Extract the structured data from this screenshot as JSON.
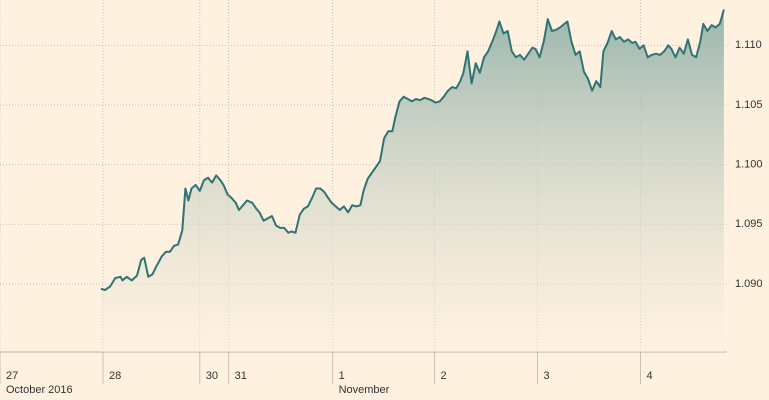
{
  "chart_data": {
    "type": "area",
    "color": "#2f7474",
    "grid": true,
    "x": [
      0.98,
      1.02,
      1.07,
      1.12,
      1.17,
      1.19,
      1.23,
      1.28,
      1.33,
      1.37,
      1.4,
      1.44,
      1.48,
      1.52,
      1.57,
      1.61,
      1.65,
      1.69,
      1.73,
      1.77,
      1.8,
      1.83,
      1.86,
      1.9,
      1.94,
      1.98,
      2.02,
      2.06,
      2.1,
      2.14,
      2.17,
      2.21,
      2.25,
      2.29,
      2.32,
      2.36,
      2.4,
      2.45,
      2.49,
      2.52,
      2.56,
      2.6,
      2.64,
      2.68,
      2.72,
      2.76,
      2.8,
      2.83,
      2.87,
      2.91,
      2.95,
      2.99,
      3.03,
      3.07,
      3.11,
      3.15,
      3.18,
      3.22,
      3.26,
      3.3,
      3.34,
      3.38,
      3.42,
      3.46,
      3.5,
      3.53,
      3.57,
      3.61,
      3.65,
      3.69,
      3.73,
      3.77,
      3.81,
      3.84,
      3.88,
      3.92,
      3.96,
      4.0,
      4.04,
      4.08,
      4.12,
      4.16,
      4.19,
      4.23,
      4.27,
      4.31,
      4.35,
      4.39,
      4.43,
      4.47,
      4.5,
      4.54,
      4.58,
      4.62,
      4.66,
      4.7,
      4.74,
      4.78,
      4.82,
      4.85,
      4.89,
      4.93,
      4.97,
      5.01,
      5.05,
      5.09,
      5.13,
      5.17,
      5.2,
      5.24,
      5.28,
      5.32,
      5.36,
      5.4,
      5.44,
      5.48,
      5.51,
      5.55,
      5.59,
      5.63,
      5.67,
      5.71,
      5.75,
      5.79,
      5.83,
      5.86,
      5.9,
      5.94,
      5.98,
      6.02,
      6.06,
      6.1,
      6.14,
      6.17,
      6.21,
      6.25,
      6.29,
      6.33,
      6.37,
      6.41,
      6.45,
      6.49,
      6.52,
      6.56,
      6.6,
      6.64,
      6.68,
      6.72,
      6.76,
      6.8,
      6.83,
      6.87,
      6.91,
      6.95,
      6.99,
      7.03
    ],
    "values": [
      1.0896,
      1.0895,
      1.0898,
      1.0905,
      1.0906,
      1.0903,
      1.0906,
      1.0903,
      1.0907,
      1.092,
      1.0922,
      1.0906,
      1.0908,
      1.0915,
      1.0923,
      1.0927,
      1.0927,
      1.0932,
      1.0933,
      1.0945,
      1.098,
      1.097,
      1.098,
      1.0983,
      1.0978,
      1.0987,
      1.0989,
      1.0985,
      1.0991,
      1.0987,
      1.0983,
      1.0975,
      1.0972,
      1.0968,
      1.0962,
      1.0966,
      1.097,
      1.0968,
      1.0963,
      1.096,
      1.0953,
      1.0955,
      1.0957,
      1.0949,
      1.0947,
      1.0947,
      1.0943,
      1.0944,
      1.0943,
      1.0958,
      1.0963,
      1.0965,
      1.0972,
      1.098,
      1.098,
      1.0977,
      1.0973,
      1.0968,
      1.0965,
      1.0962,
      1.0965,
      1.096,
      1.0966,
      1.0965,
      1.0966,
      1.0978,
      1.0988,
      1.0993,
      1.0998,
      1.1003,
      1.1022,
      1.1028,
      1.1028,
      1.104,
      1.1053,
      1.1057,
      1.1055,
      1.1053,
      1.1055,
      1.1054,
      1.1056,
      1.1055,
      1.1054,
      1.1052,
      1.1053,
      1.1057,
      1.1062,
      1.1065,
      1.1064,
      1.107,
      1.1077,
      1.1095,
      1.1068,
      1.1085,
      1.1077,
      1.109,
      1.1095,
      1.1103,
      1.1112,
      1.112,
      1.111,
      1.1112,
      1.1095,
      1.109,
      1.1092,
      1.1088,
      1.1093,
      1.1098,
      1.1097,
      1.109,
      1.1103,
      1.1122,
      1.1112,
      1.1113,
      1.1115,
      1.1118,
      1.112,
      1.1103,
      1.1092,
      1.1095,
      1.1078,
      1.1072,
      1.1062,
      1.107,
      1.1065,
      1.1095,
      1.1102,
      1.1112,
      1.1105,
      1.1107,
      1.1103,
      1.1105,
      1.1102,
      1.1103,
      1.1097,
      1.11,
      1.109,
      1.1092,
      1.1093,
      1.1092,
      1.1095,
      1.11,
      1.1097,
      1.109,
      1.1098,
      1.1093,
      1.1105,
      1.1092,
      1.109,
      1.1103,
      1.1118,
      1.1112,
      1.1117,
      1.1115,
      1.1118,
      1.113
    ],
    "xlim": [
      0,
      7.06
    ],
    "xticks": [
      {
        "value": 0,
        "label": "27"
      },
      {
        "value": 1,
        "label": "28"
      },
      {
        "value": 1.94,
        "label": "30"
      },
      {
        "value": 2.22,
        "label": "31"
      },
      {
        "value": 3.23,
        "label": "1"
      },
      {
        "value": 4.22,
        "label": "2"
      },
      {
        "value": 5.22,
        "label": "3"
      },
      {
        "value": 6.22,
        "label": "4"
      }
    ],
    "month_labels": [
      {
        "value": 0,
        "label": "October 2016"
      },
      {
        "value": 3.23,
        "label": "November"
      }
    ],
    "ylim": [
      1.0843,
      1.1138
    ],
    "yticks": [
      {
        "value": 1.09,
        "label": "1.090"
      },
      {
        "value": 1.095,
        "label": "1.095"
      },
      {
        "value": 1.1,
        "label": "1.100"
      },
      {
        "value": 1.105,
        "label": "1.105"
      },
      {
        "value": 1.11,
        "label": "1.110"
      }
    ]
  }
}
